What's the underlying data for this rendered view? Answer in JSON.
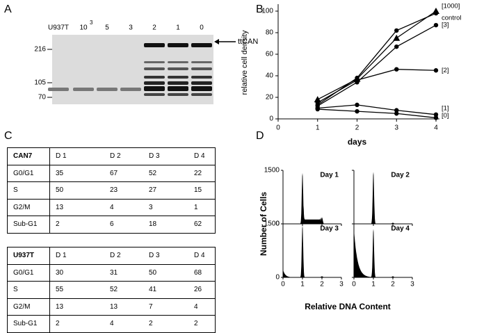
{
  "panel_letters": [
    "A",
    "B",
    "C",
    "D"
  ],
  "blot": {
    "lane_labels": [
      "U937T",
      {
        "base": "10",
        "superscript": "3"
      },
      "5",
      "3",
      "2",
      "1",
      "0"
    ],
    "mw_markers": [
      {
        "value": 216,
        "label": "216"
      },
      {
        "value": 105,
        "label": "105"
      },
      {
        "value": 70,
        "label": "70"
      }
    ],
    "band_label": "ttCAN"
  },
  "chart_data": {
    "type": "line",
    "xlabel": "days",
    "ylabel": "relative cell density",
    "x": [
      1,
      2,
      3,
      4
    ],
    "xlim": [
      0,
      4
    ],
    "xticks": [
      0,
      1,
      2,
      3,
      4
    ],
    "ylim": [
      0,
      100
    ],
    "yticks": [
      0,
      20,
      40,
      60,
      80,
      100
    ],
    "color": "#000000",
    "series": [
      {
        "name": "[1000]",
        "marker": "triangle",
        "values": [
          18,
          37,
          75,
          100
        ]
      },
      {
        "name": "control",
        "marker": "circle",
        "values": [
          13,
          38,
          82,
          98
        ]
      },
      {
        "name": "[3]",
        "marker": "circle",
        "values": [
          12,
          34,
          67,
          87
        ]
      },
      {
        "name": "[2]",
        "marker": "circle",
        "values": [
          15,
          36,
          46,
          45
        ]
      },
      {
        "name": "[1]",
        "marker": "circle",
        "values": [
          10,
          13,
          8,
          4
        ]
      },
      {
        "name": "[0]",
        "marker": "circle",
        "values": [
          9,
          7,
          5,
          1
        ]
      }
    ]
  },
  "tables": [
    {
      "header": [
        "CAN7",
        "D 1",
        "D 2",
        "D 3",
        "D 4"
      ],
      "rows": [
        [
          "G0/G1",
          35,
          67,
          52,
          22
        ],
        [
          "S",
          50,
          23,
          27,
          15
        ],
        [
          "G2/M",
          13,
          4,
          3,
          1
        ],
        [
          "Sub-G1",
          2,
          6,
          18,
          62
        ]
      ]
    },
    {
      "header": [
        "U937T",
        "D 1",
        "D 2",
        "D 3",
        "D 4"
      ],
      "rows": [
        [
          "G0/G1",
          30,
          31,
          50,
          68
        ],
        [
          "S",
          55,
          52,
          41,
          26
        ],
        [
          "G2/M",
          13,
          13,
          7,
          4
        ],
        [
          "Sub-G1",
          2,
          4,
          2,
          2
        ]
      ]
    }
  ],
  "panel_d": {
    "ylabel": "Number of Cells",
    "xlabel": "Relative DNA Content",
    "xlim": [
      0,
      3
    ],
    "xticks": [
      0,
      1,
      2,
      3
    ],
    "ylim": [
      0,
      1500
    ],
    "yticks": [
      0,
      1500
    ],
    "titles": [
      "Day 1",
      "Day 2",
      "Day 3",
      "Day 4"
    ]
  }
}
